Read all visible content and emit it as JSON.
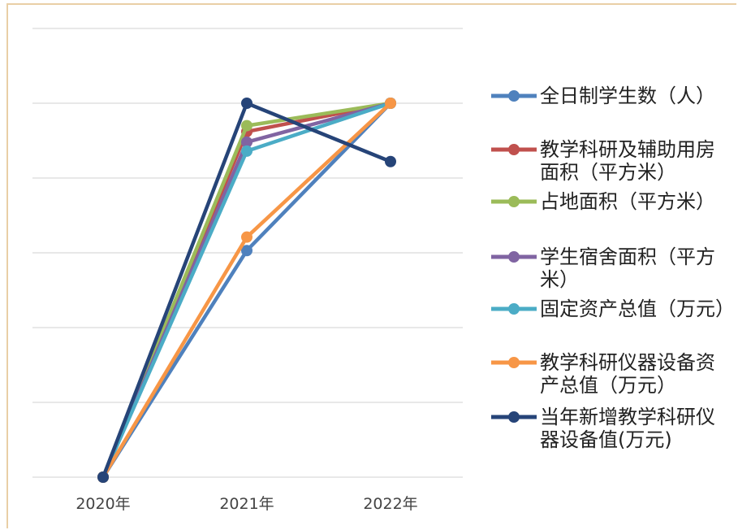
{
  "chart_data": {
    "type": "line",
    "categories": [
      "2020年",
      "2021年",
      "2022年"
    ],
    "ylim": [
      0,
      6
    ],
    "yticks": [
      0,
      1,
      2,
      3,
      4,
      5,
      6
    ],
    "grid": true,
    "legend": "right",
    "series": [
      {
        "name": "全日制学生数（人）",
        "color": "#4f81bd",
        "values": [
          0,
          3.03,
          5.0
        ]
      },
      {
        "name": "教学科研及辅助用房面积（平方米）",
        "color": "#c0504d",
        "values": [
          0,
          4.62,
          5.0
        ]
      },
      {
        "name": "占地面积（平方米）",
        "color": "#9bbb59",
        "values": [
          0,
          4.7,
          5.0
        ]
      },
      {
        "name": "学生宿舍面积（平方米）",
        "color": "#8064a2",
        "values": [
          0,
          4.48,
          5.0
        ]
      },
      {
        "name": "固定资产总值（万元）",
        "color": "#4bacc6",
        "values": [
          0,
          4.36,
          5.0
        ]
      },
      {
        "name": "教学科研仪器设备资产总值（万元）",
        "color": "#f79646",
        "values": [
          0,
          3.21,
          5.0
        ]
      },
      {
        "name": "当年新增教学科研仪器设备值(万元)",
        "color": "#264478",
        "values": [
          0,
          5.0,
          4.22
        ]
      }
    ]
  }
}
